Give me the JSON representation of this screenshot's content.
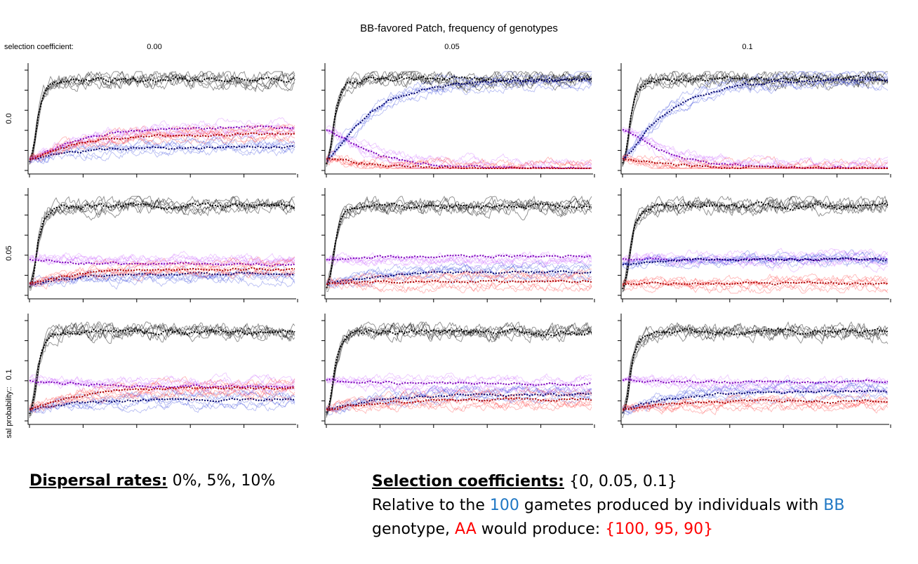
{
  "figure": {
    "title": "BB-favored Patch, frequency of genotypes",
    "selection_label": "selection coefficient:",
    "dispersal_label": "sal probability::",
    "columns": [
      "0.00",
      "0.05",
      "0.1"
    ],
    "rows": [
      "0.0",
      "0.05",
      "0.1"
    ]
  },
  "colors": {
    "AB_heterozygote": "#cc66ff",
    "BB": "#3344dd",
    "AA": "#ff3333",
    "total": "#000000",
    "mean_AB": "#7a00b8",
    "mean_BB": "#000066",
    "mean_AA": "#aa0000"
  },
  "chart_data": [
    {
      "type": "line",
      "selection_coefficient": "0.00",
      "dispersal": "0.0",
      "series": [
        {
          "key": "total",
          "start": 0.05,
          "end": 0.92
        },
        {
          "key": "AB",
          "start": 0.1,
          "end": 0.42
        },
        {
          "key": "BB",
          "start": 0.1,
          "end": 0.22
        },
        {
          "key": "AA",
          "start": 0.1,
          "end": 0.35
        }
      ]
    },
    {
      "type": "line",
      "selection_coefficient": "0.05",
      "dispersal": "0.0",
      "series": [
        {
          "key": "total",
          "start": 0.05,
          "end": 0.92
        },
        {
          "key": "AB",
          "start": 0.4,
          "end": 0.0
        },
        {
          "key": "BB",
          "start": 0.1,
          "end": 0.92
        },
        {
          "key": "AA",
          "start": 0.1,
          "end": 0.0
        }
      ]
    },
    {
      "type": "line",
      "selection_coefficient": "0.1",
      "dispersal": "0.0",
      "series": [
        {
          "key": "total",
          "start": 0.05,
          "end": 0.92
        },
        {
          "key": "AB",
          "start": 0.4,
          "end": 0.0
        },
        {
          "key": "BB",
          "start": 0.1,
          "end": 0.92
        },
        {
          "key": "AA",
          "start": 0.1,
          "end": 0.0
        }
      ]
    },
    {
      "type": "line",
      "selection_coefficient": "0.00",
      "dispersal": "0.05",
      "series": [
        {
          "key": "total",
          "start": 0.05,
          "end": 0.9
        },
        {
          "key": "AB",
          "start": 0.35,
          "end": 0.3
        },
        {
          "key": "BB",
          "start": 0.1,
          "end": 0.2
        },
        {
          "key": "AA",
          "start": 0.1,
          "end": 0.25
        }
      ]
    },
    {
      "type": "line",
      "selection_coefficient": "0.05",
      "dispersal": "0.05",
      "series": [
        {
          "key": "total",
          "start": 0.05,
          "end": 0.9
        },
        {
          "key": "AB",
          "start": 0.35,
          "end": 0.38
        },
        {
          "key": "BB",
          "start": 0.1,
          "end": 0.22
        },
        {
          "key": "AA",
          "start": 0.1,
          "end": 0.12
        }
      ]
    },
    {
      "type": "line",
      "selection_coefficient": "0.1",
      "dispersal": "0.05",
      "series": [
        {
          "key": "total",
          "start": 0.05,
          "end": 0.9
        },
        {
          "key": "AB",
          "start": 0.35,
          "end": 0.35
        },
        {
          "key": "BB",
          "start": 0.3,
          "end": 0.35
        },
        {
          "key": "AA",
          "start": 0.1,
          "end": 0.1
        }
      ]
    },
    {
      "type": "line",
      "selection_coefficient": "0.00",
      "dispersal": "0.1",
      "series": [
        {
          "key": "total",
          "start": 0.05,
          "end": 0.9
        },
        {
          "key": "AB",
          "start": 0.4,
          "end": 0.33
        },
        {
          "key": "BB",
          "start": 0.1,
          "end": 0.2
        },
        {
          "key": "AA",
          "start": 0.1,
          "end": 0.32
        }
      ]
    },
    {
      "type": "line",
      "selection_coefficient": "0.05",
      "dispersal": "0.1",
      "series": [
        {
          "key": "total",
          "start": 0.05,
          "end": 0.9
        },
        {
          "key": "AB",
          "start": 0.4,
          "end": 0.36
        },
        {
          "key": "BB",
          "start": 0.1,
          "end": 0.25
        },
        {
          "key": "AA",
          "start": 0.1,
          "end": 0.2
        }
      ]
    },
    {
      "type": "line",
      "selection_coefficient": "0.1",
      "dispersal": "0.1",
      "series": [
        {
          "key": "total",
          "start": 0.05,
          "end": 0.9
        },
        {
          "key": "AB",
          "start": 0.4,
          "end": 0.38
        },
        {
          "key": "BB",
          "start": 0.1,
          "end": 0.28
        },
        {
          "key": "AA",
          "start": 0.1,
          "end": 0.18
        }
      ]
    }
  ],
  "notes": {
    "dispersal_label": "Dispersal rates:",
    "dispersal_values": " 0%, 5%, 10%",
    "selection_label": "Selection coefficients:",
    "selection_values": " {0,  0.05,  0.1}",
    "line2_a": "Relative to the ",
    "line2_b": "100",
    "line2_c": " gametes produced by individuals with ",
    "line2_d": "BB",
    "line3_a": "genotype, ",
    "line3_b": "AA",
    "line3_c": " would produce: ",
    "line3_d": "{100, 95, 90}"
  }
}
